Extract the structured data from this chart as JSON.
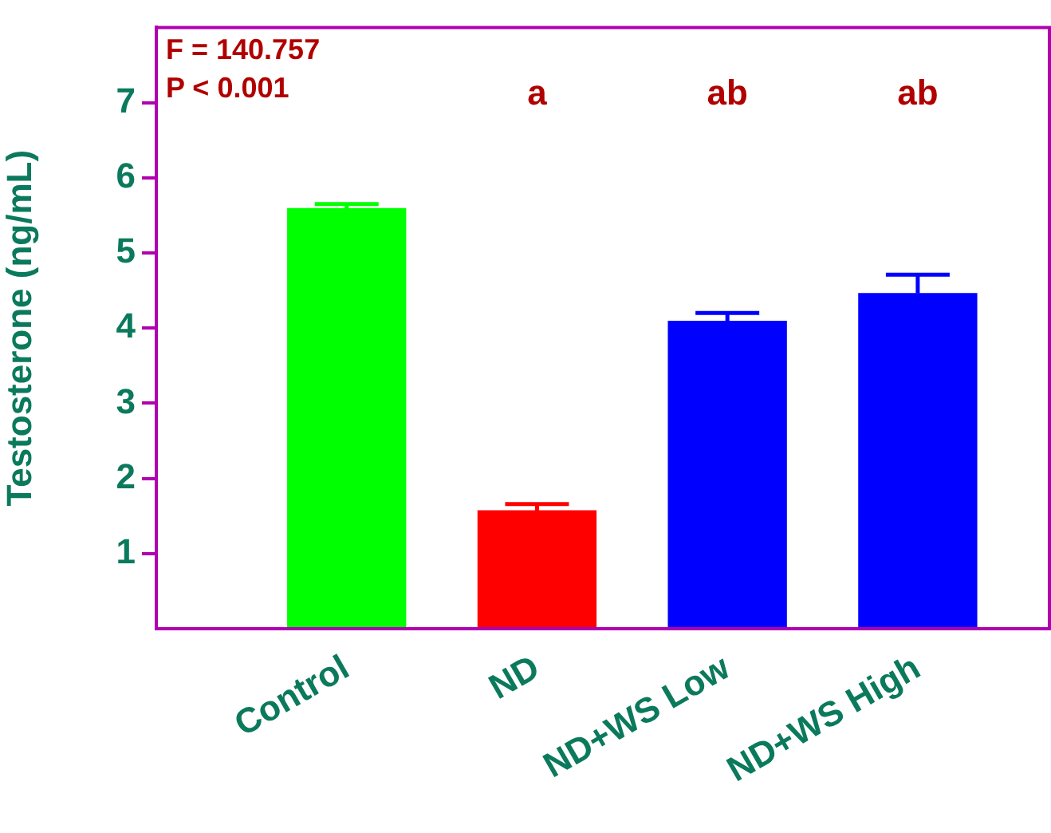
{
  "chart_data": {
    "type": "bar",
    "ylabel": "Testosterone (ng/mL)",
    "categories": [
      "Control",
      "ND",
      "ND+WS Low",
      "ND+WS High"
    ],
    "values": [
      5.59,
      1.57,
      4.09,
      4.46
    ],
    "errors": [
      0.06,
      0.09,
      0.11,
      0.25
    ],
    "colors": [
      "#00ff00",
      "#ff0000",
      "#0000ff",
      "#0000ff"
    ],
    "ylim": [
      0,
      8
    ],
    "yticks": [
      1,
      2,
      3,
      4,
      5,
      6,
      7
    ],
    "grid": false,
    "legend": false,
    "annotations": [
      "F = 140.757",
      "P < 0.001",
      "a",
      "ab",
      "ab"
    ]
  }
}
